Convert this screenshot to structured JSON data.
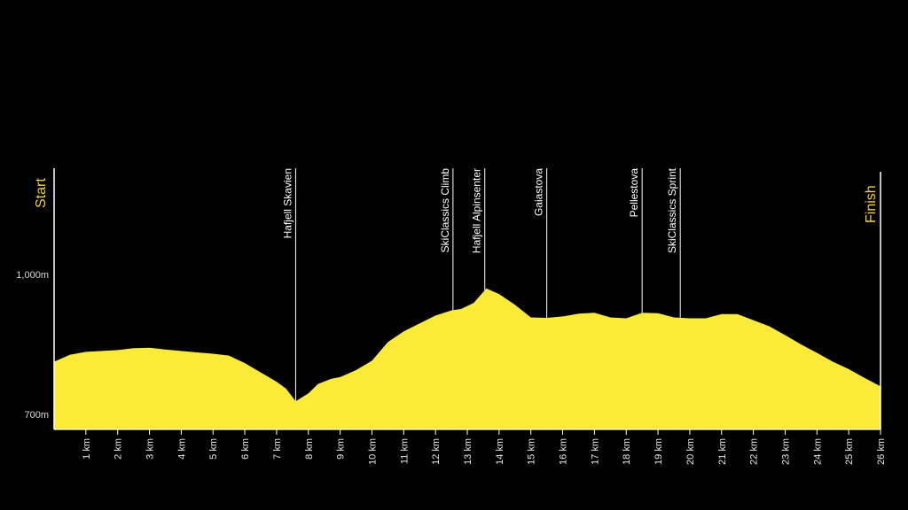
{
  "colors": {
    "background": "#000000",
    "profile": "#FBEA37",
    "accent": "#F2D440",
    "axis": "#FFFFFF"
  },
  "chart_data": {
    "type": "area",
    "title": "",
    "xlabel": "",
    "ylabel": "",
    "start_label": "Start",
    "finish_label": "Finish",
    "xlim": [
      0,
      26
    ],
    "ylim": [
      700,
      1000
    ],
    "y_ticks": [
      {
        "value": 700,
        "label": "700m"
      },
      {
        "value": 1000,
        "label": "1,000m"
      }
    ],
    "x_ticks": [
      {
        "value": 1,
        "label": "1 km"
      },
      {
        "value": 2,
        "label": "2 km"
      },
      {
        "value": 3,
        "label": "3 km"
      },
      {
        "value": 4,
        "label": "4 km"
      },
      {
        "value": 5,
        "label": "5 km"
      },
      {
        "value": 6,
        "label": "6 km"
      },
      {
        "value": 7,
        "label": "7 km"
      },
      {
        "value": 8,
        "label": "8 km"
      },
      {
        "value": 9,
        "label": "9 km"
      },
      {
        "value": 10,
        "label": "10 km"
      },
      {
        "value": 11,
        "label": "11 km"
      },
      {
        "value": 12,
        "label": "12 km"
      },
      {
        "value": 13,
        "label": "13 km"
      },
      {
        "value": 14,
        "label": "14 km"
      },
      {
        "value": 15,
        "label": "15 km"
      },
      {
        "value": 16,
        "label": "16 km"
      },
      {
        "value": 17,
        "label": "17 km"
      },
      {
        "value": 18,
        "label": "18 km"
      },
      {
        "value": 19,
        "label": "19 km"
      },
      {
        "value": 20,
        "label": "20 km"
      },
      {
        "value": 21,
        "label": "21 km"
      },
      {
        "value": 22,
        "label": "22 km"
      },
      {
        "value": 23,
        "label": "23 km"
      },
      {
        "value": 24,
        "label": "24 km"
      },
      {
        "value": 25,
        "label": "25 km"
      },
      {
        "value": 26,
        "label": "26 km"
      }
    ],
    "markers": [
      {
        "km": 7.6,
        "label": "Hafjell Skavien"
      },
      {
        "km": 12.55,
        "label": "SkiClassics Climb"
      },
      {
        "km": 13.55,
        "label": "Hafjell Alpinsenter"
      },
      {
        "km": 15.5,
        "label": "Gaiastova"
      },
      {
        "km": 18.5,
        "label": "Pellestova"
      },
      {
        "km": 19.7,
        "label": "SkiClassics Sprint"
      }
    ],
    "series": [
      {
        "x": [
          0,
          0.5,
          1,
          1.5,
          2,
          2.5,
          3,
          3.5,
          4,
          4.5,
          5,
          5.5,
          6,
          6.5,
          7,
          7.3,
          7.6,
          8,
          8.3,
          8.7,
          9,
          9.5,
          10,
          10.5,
          11,
          11.5,
          12,
          12.5,
          12.8,
          13.2,
          13.6,
          14,
          14.5,
          15,
          15.5,
          16,
          16.5,
          17,
          17.5,
          18,
          18.5,
          19,
          19.5,
          20,
          20.5,
          21,
          21.5,
          22,
          22.5,
          23,
          23.5,
          24,
          24.5,
          25,
          25.5,
          26
        ],
        "y": [
          813,
          828,
          834,
          836,
          838,
          842,
          843,
          839,
          836,
          833,
          830,
          826,
          810,
          790,
          770,
          755,
          728,
          745,
          765,
          776,
          780,
          795,
          815,
          855,
          878,
          895,
          912,
          923,
          926,
          939,
          970,
          958,
          935,
          908,
          907,
          910,
          916,
          918,
          908,
          906,
          918,
          917,
          908,
          906,
          906,
          915,
          915,
          902,
          889,
          870,
          850,
          832,
          813,
          797,
          778,
          760
        ]
      }
    ]
  }
}
